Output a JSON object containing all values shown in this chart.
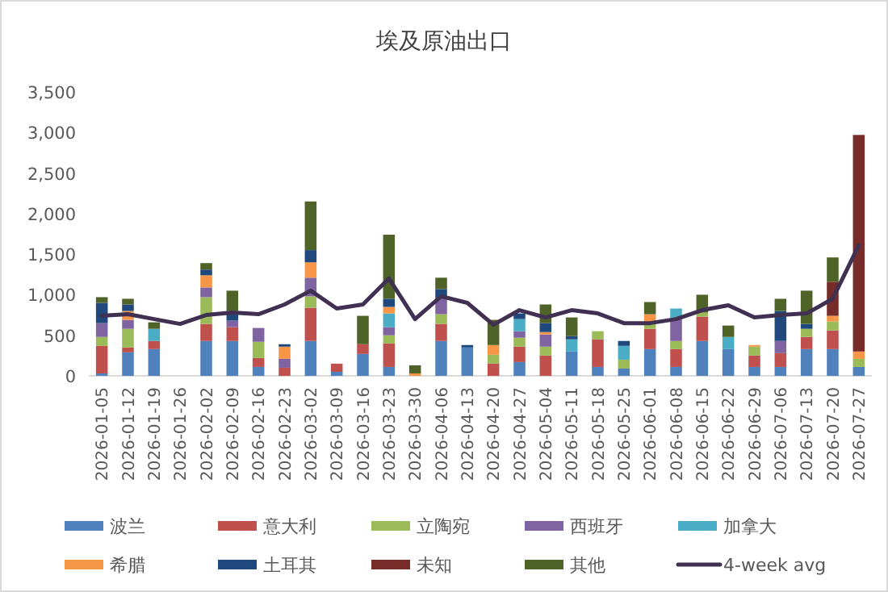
{
  "chart_data": {
    "type": "bar",
    "title": "埃及原油出口",
    "stacked": true,
    "legend": "bottom",
    "categories": [
      "2026-01-05",
      "2026-01-12",
      "2026-01-19",
      "2026-01-26",
      "2026-02-02",
      "2026-02-09",
      "2026-02-16",
      "2026-02-23",
      "2026-03-02",
      "2026-03-09",
      "2026-03-16",
      "2026-03-23",
      "2026-03-30",
      "2026-04-06",
      "2026-04-13",
      "2026-04-20",
      "2026-04-27",
      "2026-05-04",
      "2026-05-11",
      "2026-05-18",
      "2026-05-25",
      "2026-06-01",
      "2026-06-08",
      "2026-06-15",
      "2026-06-22",
      "2026-06-29",
      "2026-07-06",
      "2026-07-13",
      "2026-07-20",
      "2026-07-27"
    ],
    "ylim": [
      0,
      3500
    ],
    "yticks": [
      0,
      {
        "value": 500,
        "label": "500"
      },
      {
        "value": 1000,
        "label": "1,000"
      },
      {
        "value": 1500,
        "label": "1,500"
      },
      {
        "value": 2000,
        "label": "2,000"
      },
      {
        "value": 2500,
        "label": "2,500"
      },
      {
        "value": 3000,
        "label": "3,000"
      },
      {
        "value": 3500,
        "label": "3,500"
      }
    ],
    "series": [
      {
        "name": "波兰",
        "color": "#4f81bd",
        "values": [
          30,
          290,
          330,
          null,
          430,
          430,
          110,
          null,
          430,
          50,
          270,
          110,
          null,
          430,
          350,
          null,
          170,
          null,
          300,
          110,
          90,
          330,
          110,
          430,
          330,
          110,
          110,
          330,
          330,
          110
        ]
      },
      {
        "name": "意大利",
        "color": "#c0504d",
        "values": [
          340,
          60,
          100,
          null,
          210,
          170,
          110,
          100,
          410,
          100,
          120,
          290,
          null,
          210,
          null,
          150,
          190,
          250,
          null,
          340,
          null,
          250,
          220,
          300,
          null,
          140,
          170,
          150,
          230,
          null
        ]
      },
      {
        "name": "立陶宛",
        "color": "#9bbb59",
        "values": [
          110,
          230,
          null,
          null,
          330,
          null,
          200,
          null,
          140,
          null,
          null,
          100,
          null,
          120,
          null,
          110,
          110,
          110,
          null,
          100,
          110,
          80,
          100,
          50,
          null,
          110,
          null,
          100,
          110,
          100
        ]
      },
      {
        "name": "西班牙",
        "color": "#8064a2",
        "values": [
          170,
          110,
          null,
          null,
          120,
          80,
          170,
          110,
          230,
          null,
          null,
          100,
          null,
          200,
          null,
          null,
          80,
          150,
          null,
          null,
          null,
          null,
          280,
          null,
          null,
          null,
          150,
          null,
          null,
          null
        ]
      },
      {
        "name": "加拿大",
        "color": "#4bacc6",
        "values": [
          null,
          null,
          150,
          null,
          null,
          null,
          null,
          null,
          null,
          null,
          null,
          170,
          null,
          null,
          null,
          null,
          150,
          null,
          150,
          null,
          170,
          null,
          120,
          null,
          150,
          null,
          null,
          null,
          null,
          null
        ]
      },
      {
        "name": "希腊",
        "color": "#f79646",
        "values": [
          null,
          110,
          null,
          null,
          150,
          null,
          null,
          150,
          190,
          null,
          null,
          80,
          30,
          null,
          null,
          120,
          null,
          30,
          null,
          null,
          null,
          100,
          null,
          null,
          null,
          20,
          null,
          null,
          70,
          90
        ]
      },
      {
        "name": "土耳其",
        "color": "#1f497d",
        "values": [
          250,
          80,
          null,
          null,
          70,
          120,
          null,
          30,
          150,
          null,
          null,
          100,
          null,
          110,
          30,
          null,
          70,
          110,
          40,
          null,
          60,
          null,
          null,
          null,
          null,
          null,
          370,
          60,
          null,
          null
        ]
      },
      {
        "name": "未知",
        "color": "#772c2a",
        "values": [
          null,
          null,
          null,
          null,
          null,
          null,
          null,
          null,
          null,
          null,
          null,
          null,
          null,
          null,
          null,
          null,
          null,
          null,
          null,
          null,
          null,
          null,
          null,
          null,
          null,
          null,
          null,
          null,
          420,
          2670
        ]
      },
      {
        "name": "其他",
        "color": "#4f6228",
        "values": [
          70,
          70,
          80,
          null,
          80,
          250,
          null,
          null,
          600,
          null,
          350,
          790,
          100,
          140,
          null,
          310,
          null,
          230,
          230,
          null,
          null,
          150,
          null,
          220,
          140,
          null,
          150,
          410,
          300,
          null
        ]
      },
      {
        "name": "4-week avg",
        "type": "line",
        "color": "#403152",
        "values": [
          740,
          760,
          700,
          640,
          750,
          780,
          760,
          880,
          1050,
          830,
          880,
          1200,
          700,
          980,
          900,
          630,
          810,
          720,
          810,
          770,
          650,
          650,
          700,
          810,
          870,
          720,
          750,
          770,
          950,
          1610
        ]
      }
    ]
  }
}
